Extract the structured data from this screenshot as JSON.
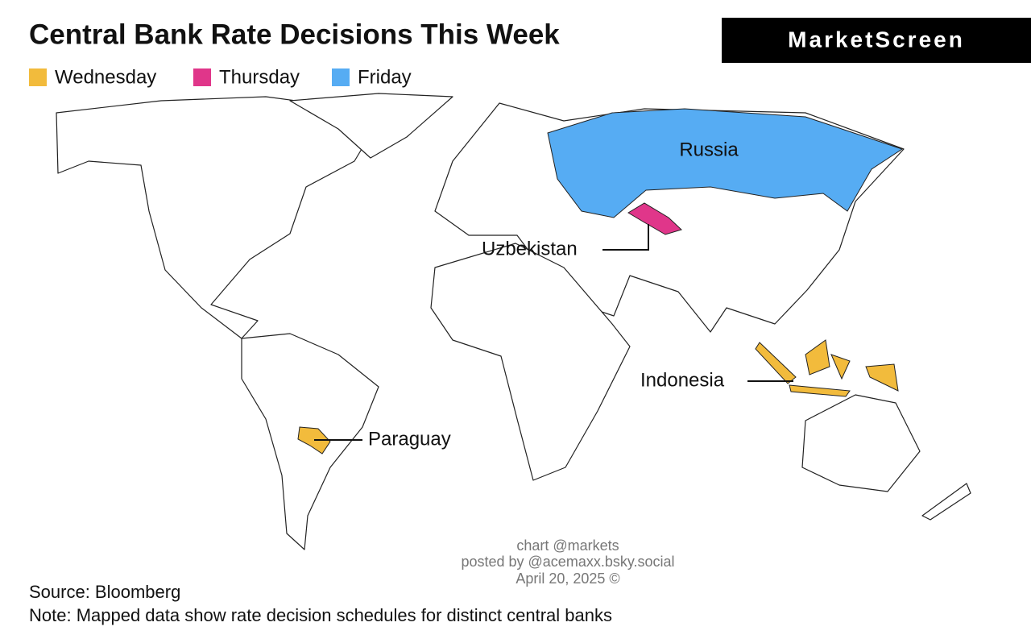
{
  "header": {
    "title": "Central Bank Rate Decisions This Week",
    "brand": "MarketScreen"
  },
  "legend": [
    {
      "label": "Wednesday",
      "color": "#f2bb3c"
    },
    {
      "label": "Thursday",
      "color": "#e0368a"
    },
    {
      "label": "Friday",
      "color": "#56acf3"
    }
  ],
  "regions": [
    {
      "label": "Russia",
      "day": "Friday"
    },
    {
      "label": "Uzbekistan",
      "day": "Thursday"
    },
    {
      "label": "Indonesia",
      "day": "Wednesday"
    },
    {
      "label": "Paraguay",
      "day": "Wednesday"
    }
  ],
  "credits": [
    "chart @markets",
    "posted by @acemaxx.bsky.social",
    "April 20, 2025 ©"
  ],
  "footer": {
    "source": "Source: Bloomberg",
    "note": "Note: Mapped data show rate decision schedules for distinct central banks"
  }
}
